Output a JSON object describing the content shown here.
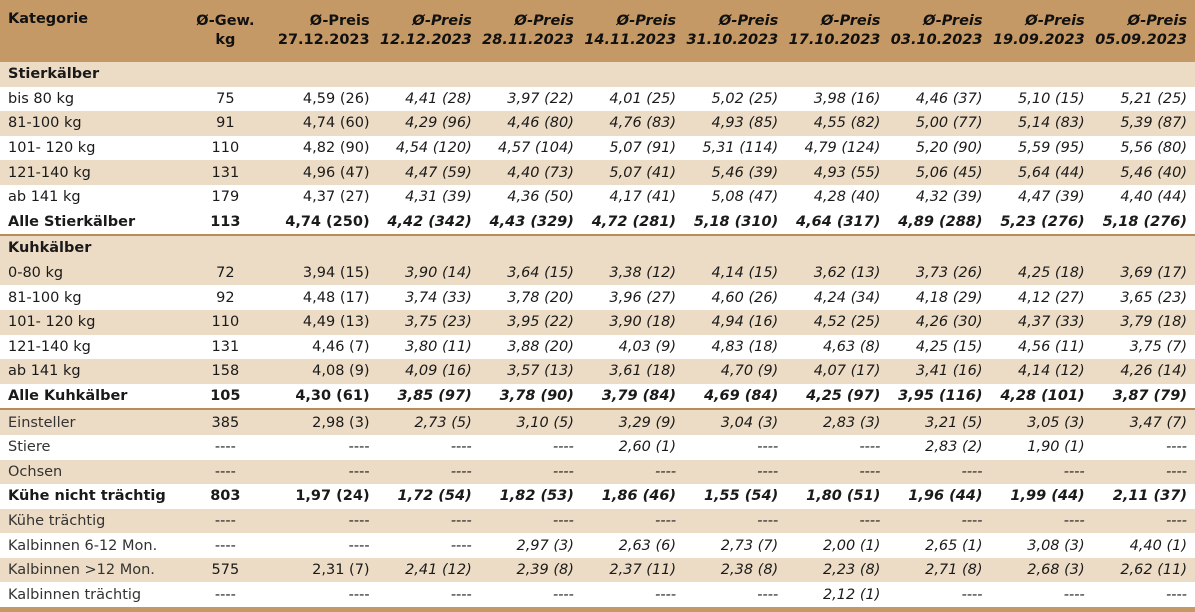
{
  "header": {
    "kategorie": "Kategorie",
    "gew_line1": "Ø-Gew.",
    "gew_line2": "kg",
    "price_label": "Ø-Preis",
    "dates": [
      "27.12.2023",
      "12.12.2023",
      "28.11.2023",
      "14.11.2023",
      "31.10.2023",
      "17.10.2023",
      "03.10.2023",
      "19.09.2023",
      "05.09.2023"
    ]
  },
  "sections": {
    "stierkaelber": "Stierkälber",
    "kuhkaelber": "Kuhkälber"
  },
  "rows": [
    {
      "name": "bis 80 kg",
      "gew": "75",
      "vals": [
        "4,59 (26)",
        "4,41 (28)",
        "3,97 (22)",
        "4,01 (25)",
        "5,02 (25)",
        "3,98 (16)",
        "4,46 (37)",
        "5,10 (15)",
        "5,21 (25)"
      ]
    },
    {
      "name": "81-100 kg",
      "gew": "91",
      "vals": [
        "4,74 (60)",
        "4,29 (96)",
        "4,46 (80)",
        "4,76 (83)",
        "4,93 (85)",
        "4,55 (82)",
        "5,00 (77)",
        "5,14 (83)",
        "5,39 (87)"
      ]
    },
    {
      "name": "101- 120 kg",
      "gew": "110",
      "vals": [
        "4,82 (90)",
        "4,54 (120)",
        "4,57 (104)",
        "5,07 (91)",
        "5,31 (114)",
        "4,79 (124)",
        "5,20 (90)",
        "5,59 (95)",
        "5,56 (80)"
      ]
    },
    {
      "name": "121-140 kg",
      "gew": "131",
      "vals": [
        "4,96 (47)",
        "4,47 (59)",
        "4,40 (73)",
        "5,07 (41)",
        "5,46 (39)",
        "4,93 (55)",
        "5,06 (45)",
        "5,64 (44)",
        "5,46 (40)"
      ]
    },
    {
      "name": "ab 141 kg",
      "gew": "179",
      "vals": [
        "4,37 (27)",
        "4,31 (39)",
        "4,36 (50)",
        "4,17 (41)",
        "5,08 (47)",
        "4,28 (40)",
        "4,32 (39)",
        "4,47 (39)",
        "4,40 (44)"
      ]
    },
    {
      "name": "Alle Stierkälber",
      "gew": "113",
      "vals": [
        "4,74 (250)",
        "4,42 (342)",
        "4,43 (329)",
        "4,72 (281)",
        "5,18 (310)",
        "4,64 (317)",
        "4,89 (288)",
        "5,23 (276)",
        "5,18 (276)"
      ]
    },
    {
      "name": "0-80 kg",
      "gew": "72",
      "vals": [
        "3,94 (15)",
        "3,90 (14)",
        "3,64 (15)",
        "3,38 (12)",
        "4,14 (15)",
        "3,62 (13)",
        "3,73 (26)",
        "4,25 (18)",
        "3,69 (17)"
      ]
    },
    {
      "name": "81-100 kg",
      "gew": "92",
      "vals": [
        "4,48 (17)",
        "3,74 (33)",
        "3,78 (20)",
        "3,96 (27)",
        "4,60 (26)",
        "4,24 (34)",
        "4,18 (29)",
        "4,12 (27)",
        "3,65 (23)"
      ]
    },
    {
      "name": "101- 120 kg",
      "gew": "110",
      "vals": [
        "4,49 (13)",
        "3,75 (23)",
        "3,95 (22)",
        "3,90 (18)",
        "4,94 (16)",
        "4,52 (25)",
        "4,26 (30)",
        "4,37 (33)",
        "3,79 (18)"
      ]
    },
    {
      "name": "121-140 kg",
      "gew": "131",
      "vals": [
        "4,46 (7)",
        "3,80 (11)",
        "3,88 (20)",
        "4,03 (9)",
        "4,83 (18)",
        "4,63 (8)",
        "4,25 (15)",
        "4,56 (11)",
        "3,75 (7)"
      ]
    },
    {
      "name": "ab 141 kg",
      "gew": "158",
      "vals": [
        "4,08 (9)",
        "4,09 (16)",
        "3,57 (13)",
        "3,61 (18)",
        "4,70 (9)",
        "4,07 (17)",
        "3,41 (16)",
        "4,14 (12)",
        "4,26 (14)"
      ]
    },
    {
      "name": "Alle Kuhkälber",
      "gew": "105",
      "vals": [
        "4,30 (61)",
        "3,85 (97)",
        "3,78 (90)",
        "3,79 (84)",
        "4,69 (84)",
        "4,25 (97)",
        "3,95 (116)",
        "4,28 (101)",
        "3,87 (79)"
      ]
    },
    {
      "name": "Einsteller",
      "gew": "385",
      "vals": [
        "2,98 (3)",
        "2,73 (5)",
        "3,10 (5)",
        "3,29 (9)",
        "3,04 (3)",
        "2,83 (3)",
        "3,21 (5)",
        "3,05 (3)",
        "3,47 (7)"
      ]
    },
    {
      "name": "Stiere",
      "gew": "----",
      "vals": [
        "----",
        "----",
        "----",
        "2,60 (1)",
        "----",
        "----",
        "2,83 (2)",
        "1,90 (1)",
        "----"
      ]
    },
    {
      "name": "Ochsen",
      "gew": "----",
      "vals": [
        "----",
        "----",
        "----",
        "----",
        "----",
        "----",
        "----",
        "----",
        "----"
      ]
    },
    {
      "name": "Kühe nicht trächtig",
      "gew": "803",
      "vals": [
        "1,97 (24)",
        "1,72 (54)",
        "1,82 (53)",
        "1,86 (46)",
        "1,55 (54)",
        "1,80 (51)",
        "1,96 (44)",
        "1,99 (44)",
        "2,11 (37)"
      ]
    },
    {
      "name": "Kühe trächtig",
      "gew": "----",
      "vals": [
        "----",
        "----",
        "----",
        "----",
        "----",
        "----",
        "----",
        "----",
        "----"
      ]
    },
    {
      "name": "Kalbinnen 6-12 Mon.",
      "gew": "----",
      "vals": [
        "----",
        "----",
        "2,97 (3)",
        "2,63 (6)",
        "2,73 (7)",
        "2,00 (1)",
        "2,65 (1)",
        "3,08 (3)",
        "4,40 (1)"
      ]
    },
    {
      "name": "Kalbinnen >12 Mon.",
      "gew": "575",
      "vals": [
        "2,31 (7)",
        "2,41 (12)",
        "2,39 (8)",
        "2,37 (11)",
        "2,38 (8)",
        "2,23 (8)",
        "2,71 (8)",
        "2,68 (3)",
        "2,62 (11)"
      ]
    },
    {
      "name": "Kalbinnen trächtig",
      "gew": "----",
      "vals": [
        "----",
        "----",
        "----",
        "----",
        "----",
        "2,12 (1)",
        "----",
        "----",
        "----"
      ]
    }
  ]
}
